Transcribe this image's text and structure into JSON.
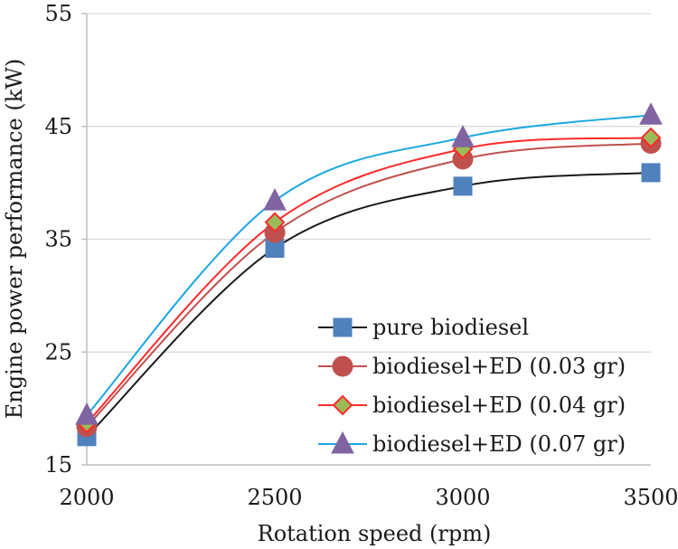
{
  "chart_data": {
    "type": "line",
    "xlabel": "Rotation speed (rpm)",
    "ylabel": "Engine power performance (kW)",
    "x": [
      2000,
      2500,
      3000,
      3500
    ],
    "x_ticks": [
      "2000",
      "2500",
      "3000",
      "3500"
    ],
    "y_ticks": [
      "15",
      "25",
      "35",
      "45",
      "55"
    ],
    "xlim": [
      2000,
      3500
    ],
    "ylim": [
      15,
      55
    ],
    "grid": "horizontal",
    "legend_position": "bottom-right",
    "series": [
      {
        "name": "pure biodiesel",
        "values": [
          17.5,
          34.2,
          39.7,
          40.9
        ],
        "line_color": "#1a1a1a",
        "marker": "square",
        "marker_fill": "#4f81bd",
        "marker_stroke": "#4f81bd"
      },
      {
        "name": "biodiesel+ED (0.03 gr)",
        "values": [
          18.4,
          35.6,
          42.1,
          43.5
        ],
        "line_color": "#c0504d",
        "marker": "circle",
        "marker_fill": "#c0504d",
        "marker_stroke": "#c0504d"
      },
      {
        "name": "biodiesel+ED (0.04 gr)",
        "values": [
          18.7,
          36.5,
          43.0,
          44.0
        ],
        "line_color": "#ff2a2a",
        "marker": "diamond",
        "marker_fill": "#9bbb59",
        "marker_stroke": "#ff2a2a"
      },
      {
        "name": "biodiesel+ED (0.07 gr)",
        "values": [
          19.4,
          38.4,
          44.0,
          46.0
        ],
        "line_color": "#1aa7e0",
        "marker": "triangle",
        "marker_fill": "#8064a2",
        "marker_stroke": "#8064a2"
      }
    ]
  }
}
